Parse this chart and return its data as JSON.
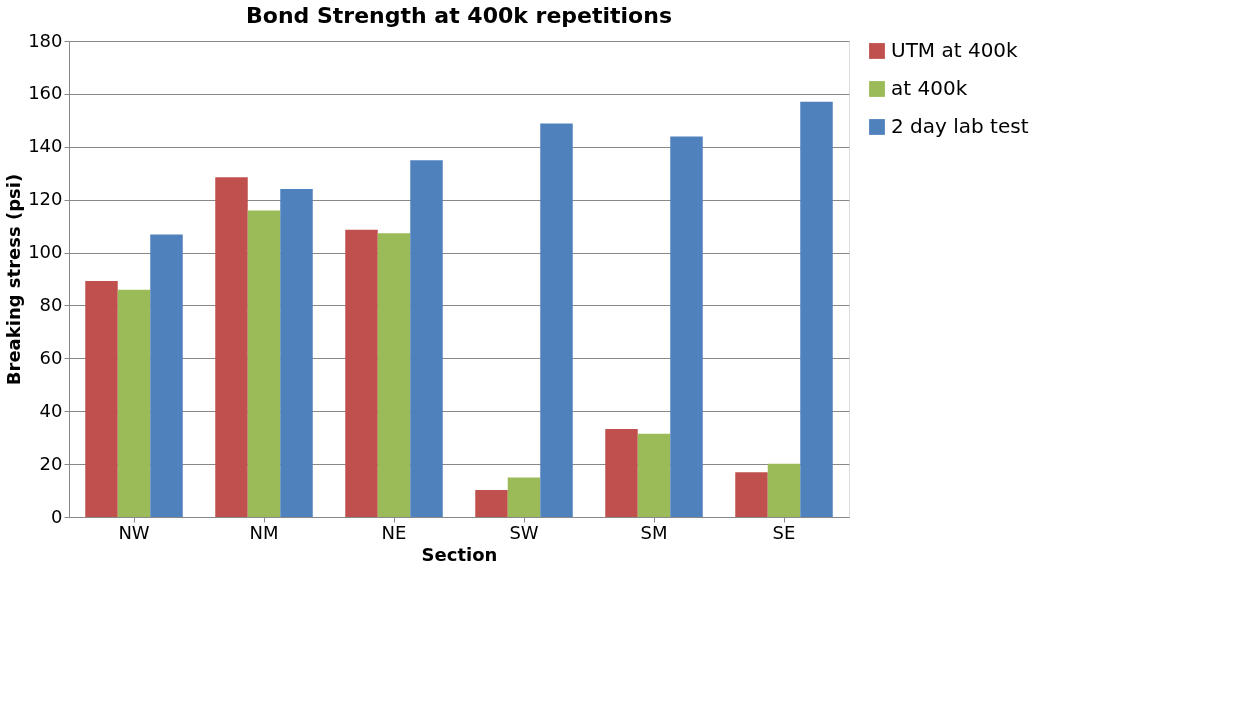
{
  "chart_data": {
    "type": "bar",
    "title": "Bond Strength at 400k repetitions",
    "xlabel": "Section",
    "ylabel": "Breaking stress (psi)",
    "categories": [
      "NW",
      "NM",
      "NE",
      "SW",
      "SM",
      "SE"
    ],
    "series": [
      {
        "name": "UTM at 400k",
        "color": "#c0504d",
        "values": [
          89.2,
          128.5,
          108.6,
          10.2,
          33.3,
          16.9
        ]
      },
      {
        "name": "at 400k",
        "color": "#9bbb59",
        "values": [
          85.9,
          115.9,
          107.3,
          14.9,
          31.5,
          20.1
        ]
      },
      {
        "name": "2 day lab test",
        "color": "#4f81bd",
        "values": [
          106.8,
          124.0,
          134.9,
          148.8,
          143.9,
          157.0
        ]
      }
    ],
    "ylim": [
      0,
      180
    ],
    "yticks": [
      0,
      20,
      40,
      60,
      80,
      100,
      120,
      140,
      160,
      180
    ],
    "grid": "y",
    "legend": "right"
  }
}
